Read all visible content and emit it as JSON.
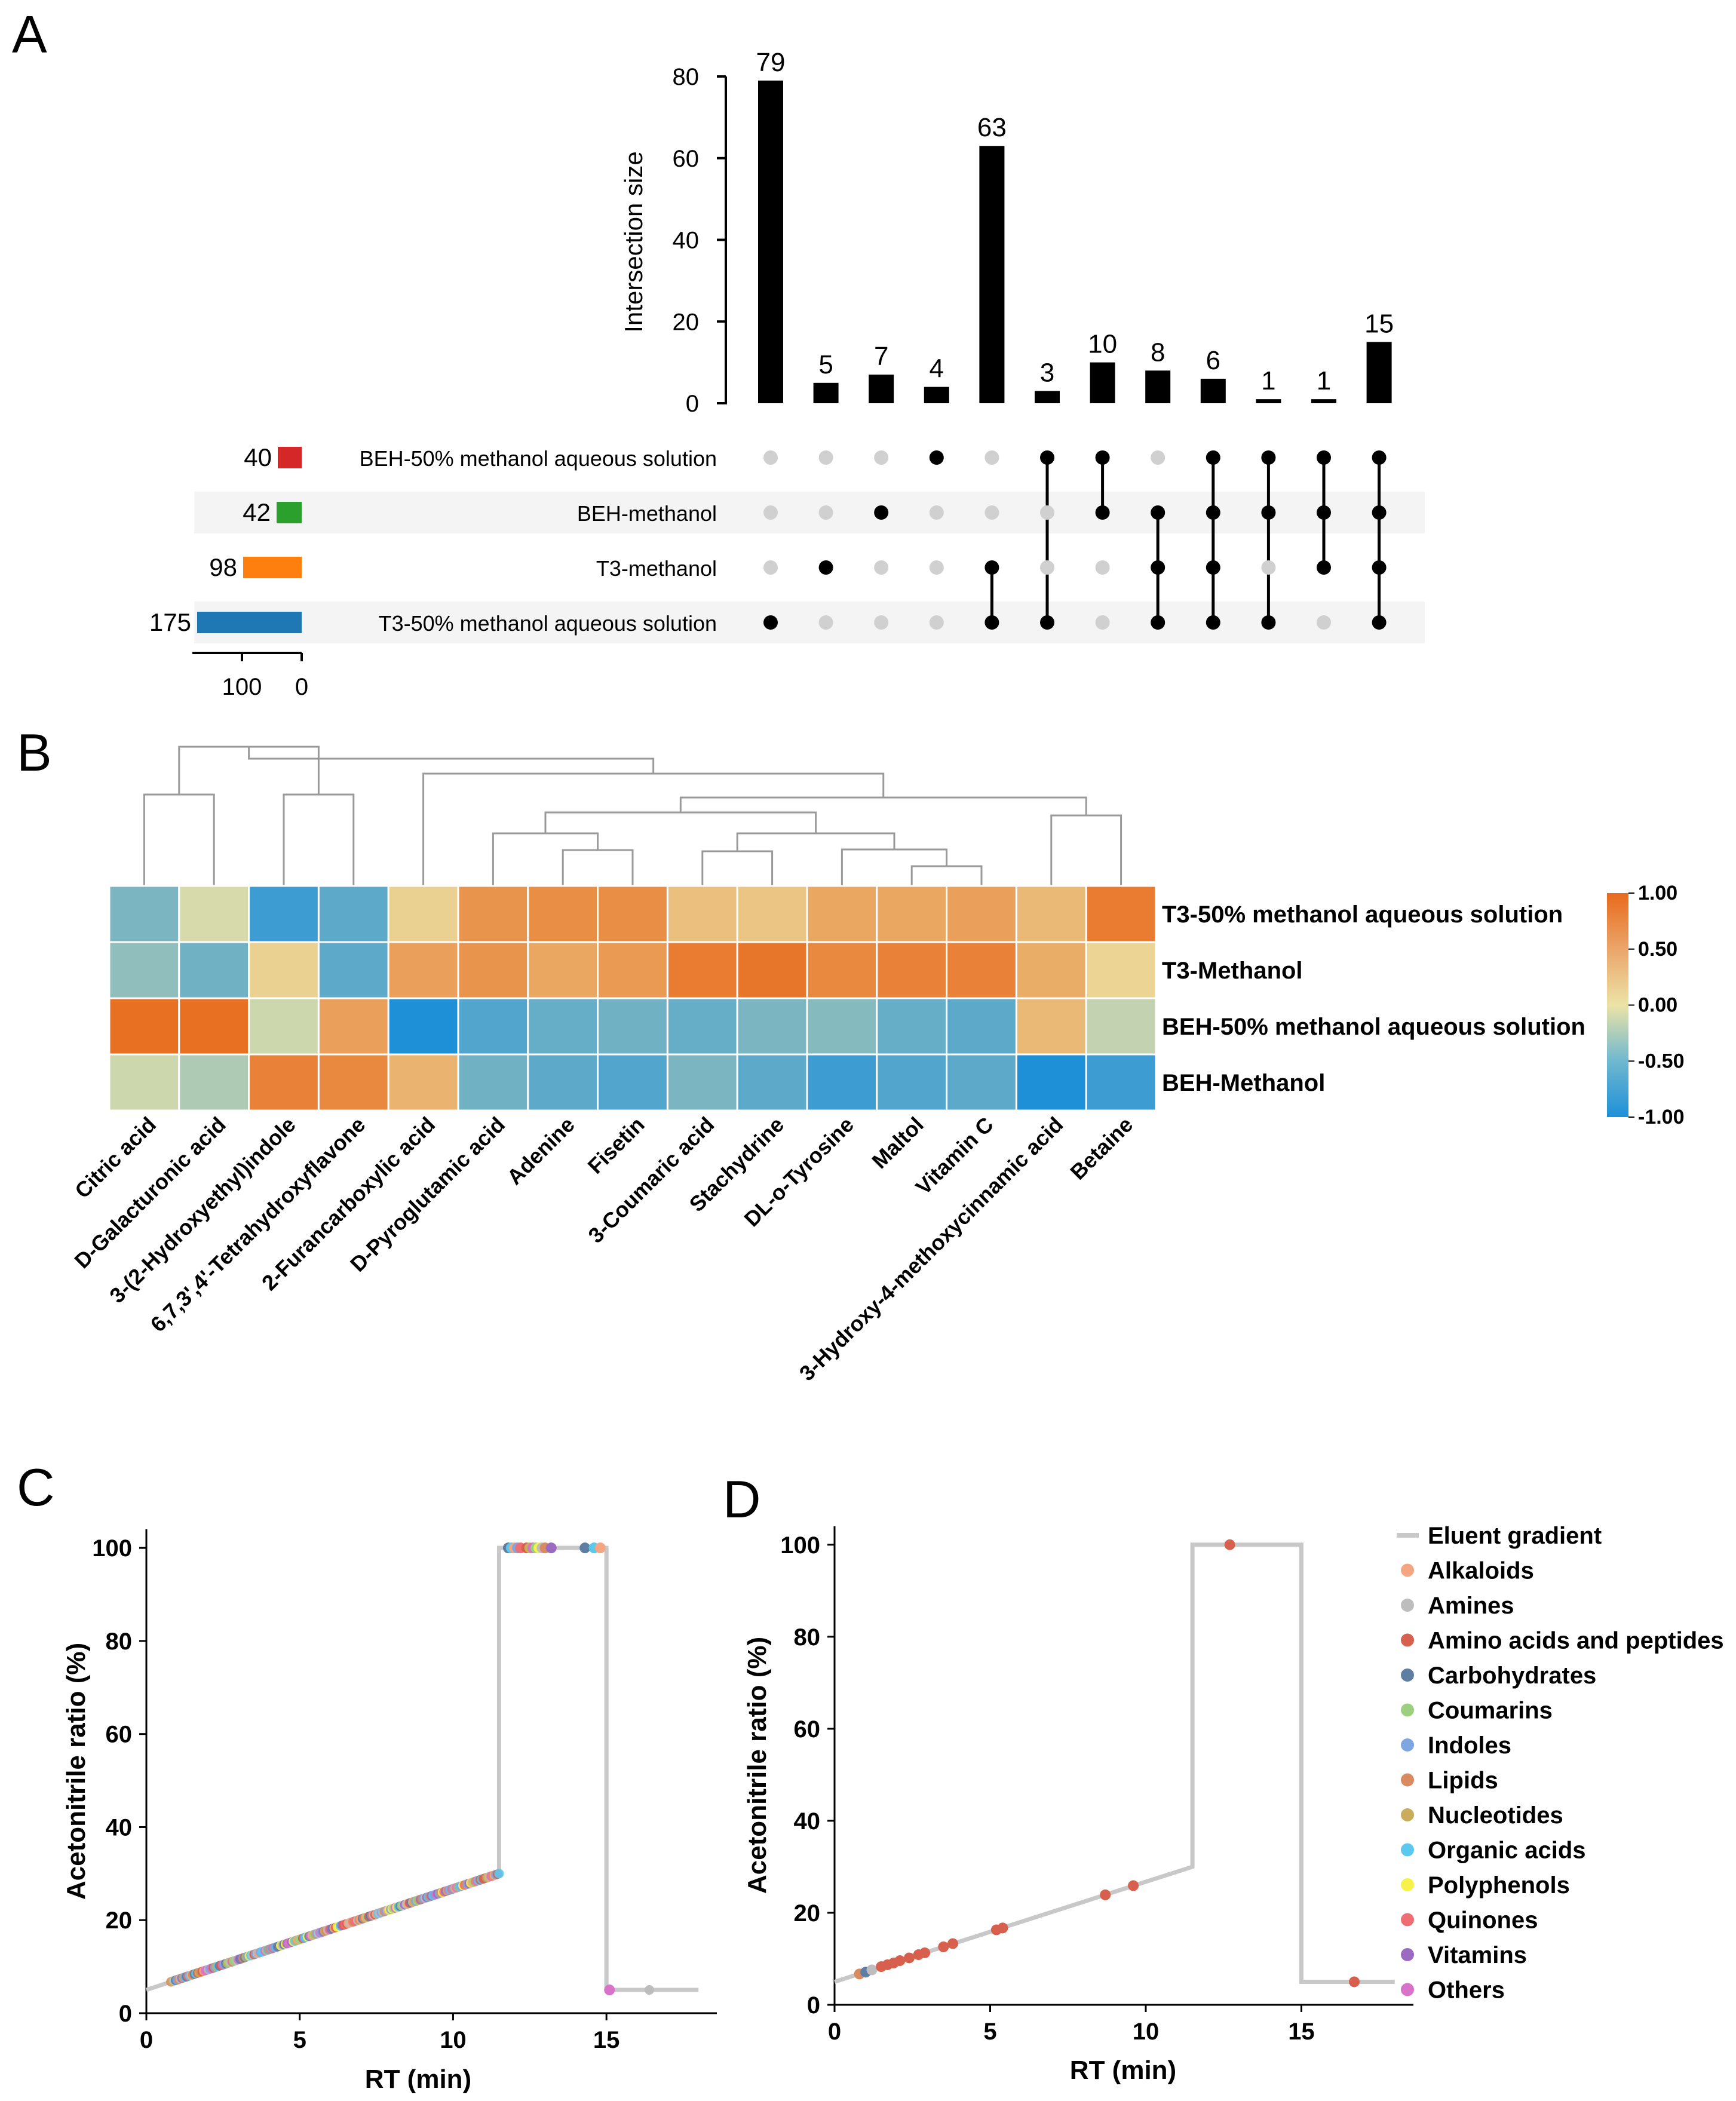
{
  "panels": {
    "a": "A",
    "b": "B",
    "c": "C",
    "d": "D"
  },
  "chart_data": [
    {
      "panel": "A",
      "type": "bar",
      "subtype": "upset",
      "ylabel": "Intersection size",
      "ylim": [
        0,
        80
      ],
      "yticks": [
        0,
        20,
        40,
        60,
        80
      ],
      "sets": [
        {
          "name": "BEH-50% methanol aqueous solution",
          "size": 40,
          "color": "#d62728"
        },
        {
          "name": "BEH-methanol",
          "size": 42,
          "color": "#2ca02c"
        },
        {
          "name": "T3-methanol",
          "size": 98,
          "color": "#ff7f0e"
        },
        {
          "name": "T3-50% methanol aqueous solution",
          "size": 175,
          "color": "#1f77b4"
        }
      ],
      "set_size_ticks": [
        100,
        0
      ],
      "intersections": [
        {
          "value": 79,
          "members": [
            3
          ]
        },
        {
          "value": 5,
          "members": [
            2
          ]
        },
        {
          "value": 7,
          "members": [
            1
          ]
        },
        {
          "value": 4,
          "members": [
            0
          ]
        },
        {
          "value": 63,
          "members": [
            2,
            3
          ]
        },
        {
          "value": 3,
          "members": [
            0,
            3
          ]
        },
        {
          "value": 10,
          "members": [
            0,
            1
          ]
        },
        {
          "value": 8,
          "members": [
            1,
            2,
            3
          ]
        },
        {
          "value": 6,
          "members": [
            0,
            1,
            2,
            3
          ]
        },
        {
          "value": 1,
          "members": [
            0,
            1,
            3
          ]
        },
        {
          "value": 1,
          "members": [
            0,
            1,
            2
          ]
        },
        {
          "value": 15,
          "members": [
            0,
            1,
            2,
            3
          ]
        }
      ]
    },
    {
      "panel": "B",
      "type": "heatmap",
      "rows": [
        "T3-50% methanol aqueous solution",
        "T3-Methanol",
        "BEH-50% methanol aqueous solution",
        "BEH-Methanol"
      ],
      "columns": [
        "Citric acid",
        "D-Galacturonic acid",
        "3-(2-Hydroxyethyl)indole",
        "6,7,3',4'-Tetrahydroxyflavone",
        "2-Furancarboxylic acid",
        "D-Pyroglutamic acid",
        "Adenine",
        "Fisetin",
        "3-Coumaric acid",
        "Stachydrine",
        "DL-o-Tyrosine",
        "Maltol",
        "Vitamin C",
        "3-Hydroxy-4-methoxycinnamic acid",
        "Betaine"
      ],
      "values": [
        [
          -0.55,
          -0.1,
          -0.85,
          -0.7,
          0.15,
          0.65,
          0.7,
          0.7,
          0.3,
          0.25,
          0.5,
          0.5,
          0.55,
          0.35,
          0.85
        ],
        [
          -0.45,
          -0.6,
          0.15,
          -0.7,
          0.55,
          0.65,
          0.5,
          0.6,
          0.85,
          0.9,
          0.75,
          0.8,
          0.8,
          0.45,
          0.12
        ],
        [
          0.95,
          0.95,
          -0.15,
          0.55,
          -1.0,
          -0.75,
          -0.65,
          -0.6,
          -0.65,
          -0.55,
          -0.5,
          -0.65,
          -0.7,
          0.35,
          -0.2
        ],
        [
          -0.15,
          -0.3,
          0.8,
          0.75,
          0.4,
          -0.6,
          -0.7,
          -0.75,
          -0.55,
          -0.7,
          -0.85,
          -0.75,
          -0.7,
          -1.0,
          -0.85
        ]
      ],
      "colorbar": {
        "min": -1.0,
        "max": 1.0,
        "ticks": [
          "1.00",
          "0.50",
          "0.00",
          "-0.50",
          "-1.00"
        ],
        "low": "#1e90d8",
        "mid": "#ece3a6",
        "high": "#e86a1c"
      },
      "dendrogram": "hierarchical clustering of columns"
    },
    {
      "panel": "C",
      "type": "scatter",
      "xlabel": "RT (min)",
      "ylabel": "Acetonitrile ratio (%)",
      "xlim": [
        0,
        19
      ],
      "ylim": [
        0,
        105
      ],
      "xticks": [
        0,
        5,
        10,
        15
      ],
      "yticks": [
        0,
        20,
        40,
        60,
        80,
        100
      ],
      "gradient": {
        "x": [
          0,
          11.5,
          11.5,
          15,
          15,
          18
        ],
        "y": [
          5,
          30,
          100,
          100,
          5,
          5
        ]
      },
      "note": "approx. 200 compounds distributed along the gradient line between 0.8 and 11.5 min, plus a cluster on the 100% plateau"
    },
    {
      "panel": "D",
      "type": "scatter",
      "xlabel": "RT (min)",
      "ylabel": "Acetonitrile ratio (%)",
      "xlim": [
        0,
        19
      ],
      "ylim": [
        0,
        105
      ],
      "xticks": [
        0,
        5,
        10,
        15
      ],
      "yticks": [
        0,
        20,
        40,
        60,
        80,
        100
      ],
      "gradient": {
        "x": [
          0,
          11.5,
          11.5,
          15,
          15,
          18
        ],
        "y": [
          5,
          30,
          100,
          100,
          5,
          5
        ]
      },
      "points": [
        {
          "x": 0.8,
          "y": 6.7,
          "class": "Lipids"
        },
        {
          "x": 1.0,
          "y": 7.1,
          "class": "Carbohydrates"
        },
        {
          "x": 1.2,
          "y": 7.6,
          "class": "Amines"
        },
        {
          "x": 1.5,
          "y": 8.3,
          "class": "Amino acids and peptides"
        },
        {
          "x": 1.7,
          "y": 8.7,
          "class": "Amino acids and peptides"
        },
        {
          "x": 1.9,
          "y": 9.1,
          "class": "Amino acids and peptides"
        },
        {
          "x": 2.1,
          "y": 9.6,
          "class": "Amino acids and peptides"
        },
        {
          "x": 2.4,
          "y": 10.2,
          "class": "Amino acids and peptides"
        },
        {
          "x": 2.7,
          "y": 10.9,
          "class": "Amino acids and peptides"
        },
        {
          "x": 2.9,
          "y": 11.3,
          "class": "Amino acids and peptides"
        },
        {
          "x": 3.5,
          "y": 12.6,
          "class": "Amino acids and peptides"
        },
        {
          "x": 3.8,
          "y": 13.3,
          "class": "Amino acids and peptides"
        },
        {
          "x": 5.2,
          "y": 16.3,
          "class": "Amino acids and peptides"
        },
        {
          "x": 5.4,
          "y": 16.7,
          "class": "Amino acids and peptides"
        },
        {
          "x": 8.7,
          "y": 23.9,
          "class": "Amino acids and peptides"
        },
        {
          "x": 9.6,
          "y": 25.9,
          "class": "Amino acids and peptides"
        },
        {
          "x": 12.7,
          "y": 100,
          "class": "Amino acids and peptides"
        },
        {
          "x": 16.7,
          "y": 5,
          "class": "Amino acids and peptides"
        }
      ],
      "legend": [
        {
          "label": "Eluent gradient",
          "color": "#c8c8c8",
          "kind": "line"
        },
        {
          "label": "Alkaloids",
          "color": "#f4a582"
        },
        {
          "label": "Amines",
          "color": "#bdbdbd"
        },
        {
          "label": "Amino acids and peptides",
          "color": "#d6604d"
        },
        {
          "label": "Carbohydrates",
          "color": "#5e7fa3"
        },
        {
          "label": "Coumarins",
          "color": "#9ccf80"
        },
        {
          "label": "Indoles",
          "color": "#7ea6e0"
        },
        {
          "label": "Lipids",
          "color": "#d98b5f"
        },
        {
          "label": "Nucleotides",
          "color": "#c9ad5d"
        },
        {
          "label": "Organic acids",
          "color": "#5bc8ee"
        },
        {
          "label": "Polyphenols",
          "color": "#f7f24a"
        },
        {
          "label": "Quinones",
          "color": "#ee6e73"
        },
        {
          "label": "Vitamins",
          "color": "#9a6bc0"
        },
        {
          "label": "Others",
          "color": "#d873c9"
        }
      ],
      "legend_position": "right"
    }
  ]
}
